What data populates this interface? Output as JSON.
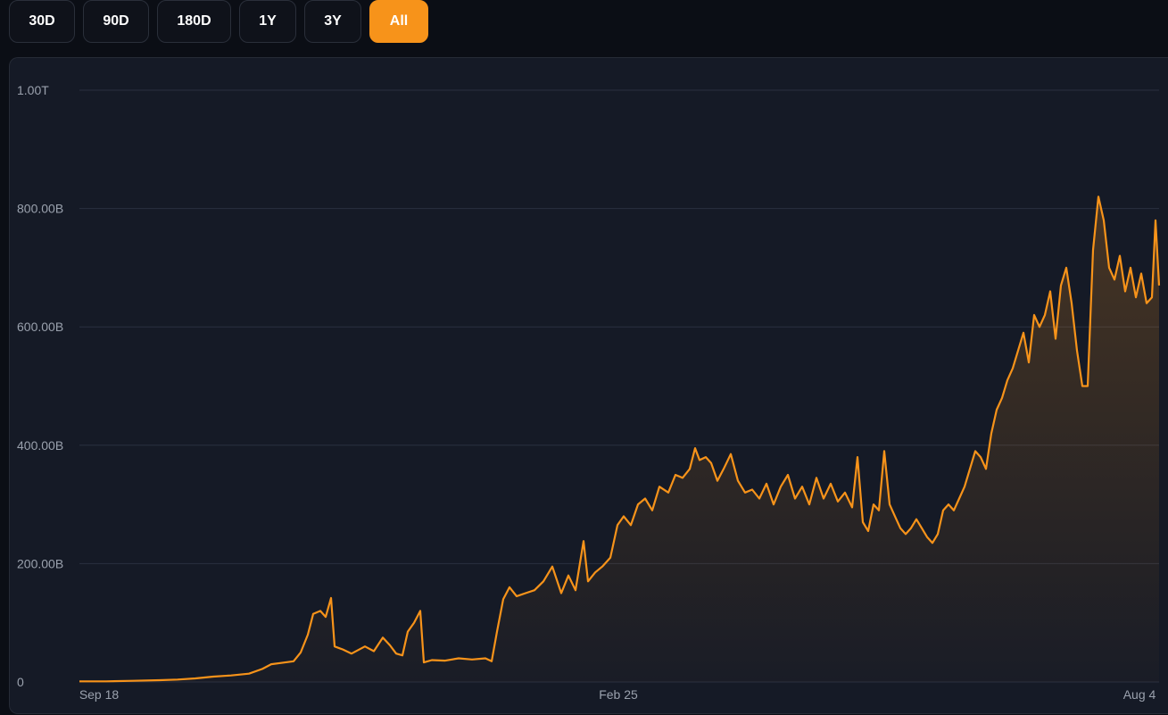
{
  "range_selector": {
    "buttons": [
      {
        "label": "30D",
        "active": false
      },
      {
        "label": "90D",
        "active": false
      },
      {
        "label": "180D",
        "active": false
      },
      {
        "label": "1Y",
        "active": false
      },
      {
        "label": "3Y",
        "active": false
      },
      {
        "label": "All",
        "active": true
      }
    ],
    "accent_color": "#f7931a"
  },
  "chart_data": {
    "type": "area",
    "title": "",
    "xlabel": "",
    "ylabel": "",
    "x_tick_labels": [
      "Sep 18",
      "Feb 25",
      "Aug 4"
    ],
    "y_tick_labels": [
      "0",
      "200.00B",
      "400.00B",
      "600.00B",
      "800.00B",
      "1.00T"
    ],
    "y_ticks": [
      0,
      200,
      400,
      600,
      800,
      1000
    ],
    "y_unit": "B",
    "ylim": [
      0,
      1000
    ],
    "grid": true,
    "series": [
      {
        "color": "#f7931a",
        "points": [
          [
            0,
            1
          ],
          [
            30,
            1
          ],
          [
            60,
            2
          ],
          [
            90,
            3
          ],
          [
            110,
            4
          ],
          [
            130,
            6
          ],
          [
            150,
            9
          ],
          [
            170,
            11
          ],
          [
            190,
            14
          ],
          [
            205,
            22
          ],
          [
            215,
            30
          ],
          [
            225,
            32
          ],
          [
            240,
            35
          ],
          [
            248,
            50
          ],
          [
            256,
            80
          ],
          [
            262,
            115
          ],
          [
            270,
            120
          ],
          [
            276,
            110
          ],
          [
            282,
            142
          ],
          [
            286,
            60
          ],
          [
            295,
            55
          ],
          [
            305,
            48
          ],
          [
            320,
            60
          ],
          [
            330,
            52
          ],
          [
            340,
            75
          ],
          [
            348,
            62
          ],
          [
            355,
            48
          ],
          [
            362,
            45
          ],
          [
            368,
            85
          ],
          [
            375,
            100
          ],
          [
            382,
            120
          ],
          [
            386,
            33
          ],
          [
            395,
            37
          ],
          [
            410,
            36
          ],
          [
            425,
            40
          ],
          [
            440,
            38
          ],
          [
            455,
            40
          ],
          [
            462,
            35
          ],
          [
            468,
            85
          ],
          [
            475,
            140
          ],
          [
            482,
            160
          ],
          [
            490,
            145
          ],
          [
            500,
            150
          ],
          [
            510,
            155
          ],
          [
            520,
            170
          ],
          [
            530,
            195
          ],
          [
            540,
            150
          ],
          [
            548,
            180
          ],
          [
            556,
            155
          ],
          [
            565,
            238
          ],
          [
            570,
            170
          ],
          [
            578,
            185
          ],
          [
            586,
            195
          ],
          [
            595,
            210
          ],
          [
            603,
            265
          ],
          [
            610,
            280
          ],
          [
            618,
            265
          ],
          [
            626,
            300
          ],
          [
            634,
            310
          ],
          [
            642,
            290
          ],
          [
            650,
            330
          ],
          [
            660,
            320
          ],
          [
            668,
            350
          ],
          [
            676,
            345
          ],
          [
            684,
            360
          ],
          [
            690,
            395
          ],
          [
            695,
            375
          ],
          [
            702,
            380
          ],
          [
            708,
            370
          ],
          [
            715,
            340
          ],
          [
            722,
            360
          ],
          [
            730,
            385
          ],
          [
            738,
            340
          ],
          [
            746,
            320
          ],
          [
            754,
            325
          ],
          [
            762,
            310
          ],
          [
            770,
            335
          ],
          [
            778,
            300
          ],
          [
            786,
            330
          ],
          [
            794,
            350
          ],
          [
            802,
            310
          ],
          [
            810,
            330
          ],
          [
            818,
            300
          ],
          [
            826,
            345
          ],
          [
            834,
            310
          ],
          [
            842,
            335
          ],
          [
            850,
            305
          ],
          [
            858,
            320
          ],
          [
            866,
            295
          ],
          [
            872,
            380
          ],
          [
            878,
            270
          ],
          [
            884,
            255
          ],
          [
            890,
            300
          ],
          [
            896,
            290
          ],
          [
            902,
            390
          ],
          [
            908,
            300
          ],
          [
            914,
            280
          ],
          [
            920,
            260
          ],
          [
            926,
            250
          ],
          [
            932,
            260
          ],
          [
            938,
            275
          ],
          [
            944,
            260
          ],
          [
            950,
            245
          ],
          [
            956,
            235
          ],
          [
            962,
            250
          ],
          [
            968,
            290
          ],
          [
            974,
            300
          ],
          [
            980,
            290
          ],
          [
            986,
            310
          ],
          [
            992,
            330
          ],
          [
            998,
            360
          ],
          [
            1004,
            390
          ],
          [
            1010,
            380
          ],
          [
            1016,
            360
          ],
          [
            1022,
            420
          ],
          [
            1028,
            460
          ],
          [
            1034,
            480
          ],
          [
            1040,
            510
          ],
          [
            1046,
            530
          ],
          [
            1052,
            560
          ],
          [
            1058,
            590
          ],
          [
            1064,
            540
          ],
          [
            1070,
            620
          ],
          [
            1076,
            600
          ],
          [
            1082,
            620
          ],
          [
            1088,
            660
          ],
          [
            1094,
            580
          ],
          [
            1100,
            670
          ],
          [
            1106,
            700
          ],
          [
            1112,
            640
          ],
          [
            1118,
            560
          ],
          [
            1124,
            500
          ],
          [
            1130,
            500
          ],
          [
            1136,
            730
          ],
          [
            1142,
            820
          ],
          [
            1148,
            780
          ],
          [
            1154,
            700
          ],
          [
            1160,
            680
          ],
          [
            1166,
            720
          ],
          [
            1172,
            660
          ],
          [
            1178,
            700
          ],
          [
            1184,
            650
          ],
          [
            1190,
            690
          ],
          [
            1196,
            640
          ],
          [
            1202,
            650
          ],
          [
            1206,
            780
          ],
          [
            1210,
            670
          ]
        ]
      }
    ],
    "x_domain": [
      0,
      1210
    ]
  }
}
